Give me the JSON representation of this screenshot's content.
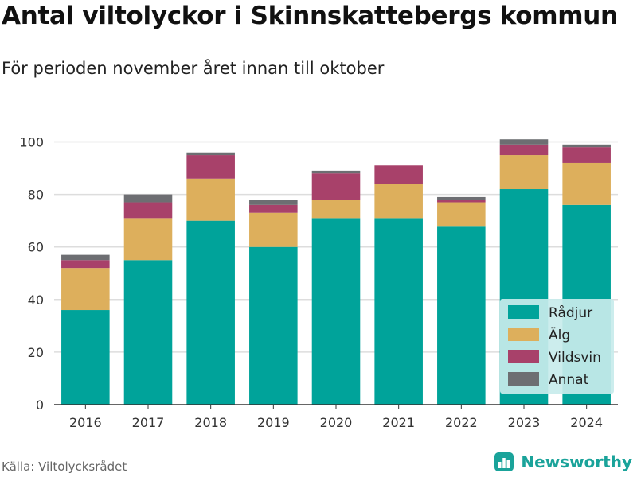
{
  "title": "Antal viltolyckor i Skinnskattebergs kommun",
  "subtitle": "För perioden november året innan till oktober",
  "source": "Källa: Viltolycksrådet",
  "brand": "Newsworthy",
  "colors": {
    "Rådjur": "#00a39a",
    "Älg": "#ddaf5c",
    "Vildsvin": "#a8416a",
    "Annat": "#6d6e72",
    "grid": "#dddddd",
    "axis": "#333333",
    "legend_bg": "#c8eceb",
    "brand": "#1aa39a"
  },
  "chart_data": {
    "type": "bar",
    "stacked": true,
    "categories": [
      "2016",
      "2017",
      "2018",
      "2019",
      "2020",
      "2021",
      "2022",
      "2023",
      "2024"
    ],
    "series": [
      {
        "name": "Rådjur",
        "values": [
          36,
          55,
          70,
          60,
          71,
          71,
          68,
          82,
          76
        ]
      },
      {
        "name": "Älg",
        "values": [
          16,
          16,
          16,
          13,
          7,
          13,
          9,
          13,
          16
        ]
      },
      {
        "name": "Vildsvin",
        "values": [
          3,
          6,
          9,
          3,
          10,
          7,
          1,
          4,
          6
        ]
      },
      {
        "name": "Annat",
        "values": [
          2,
          3,
          1,
          2,
          1,
          0,
          1,
          2,
          1
        ]
      }
    ],
    "ylim": [
      0,
      100
    ],
    "yticks": [
      0,
      20,
      40,
      60,
      80,
      100
    ],
    "grid": true,
    "legend_position": "bottom-right",
    "xlabel": "",
    "ylabel": ""
  }
}
